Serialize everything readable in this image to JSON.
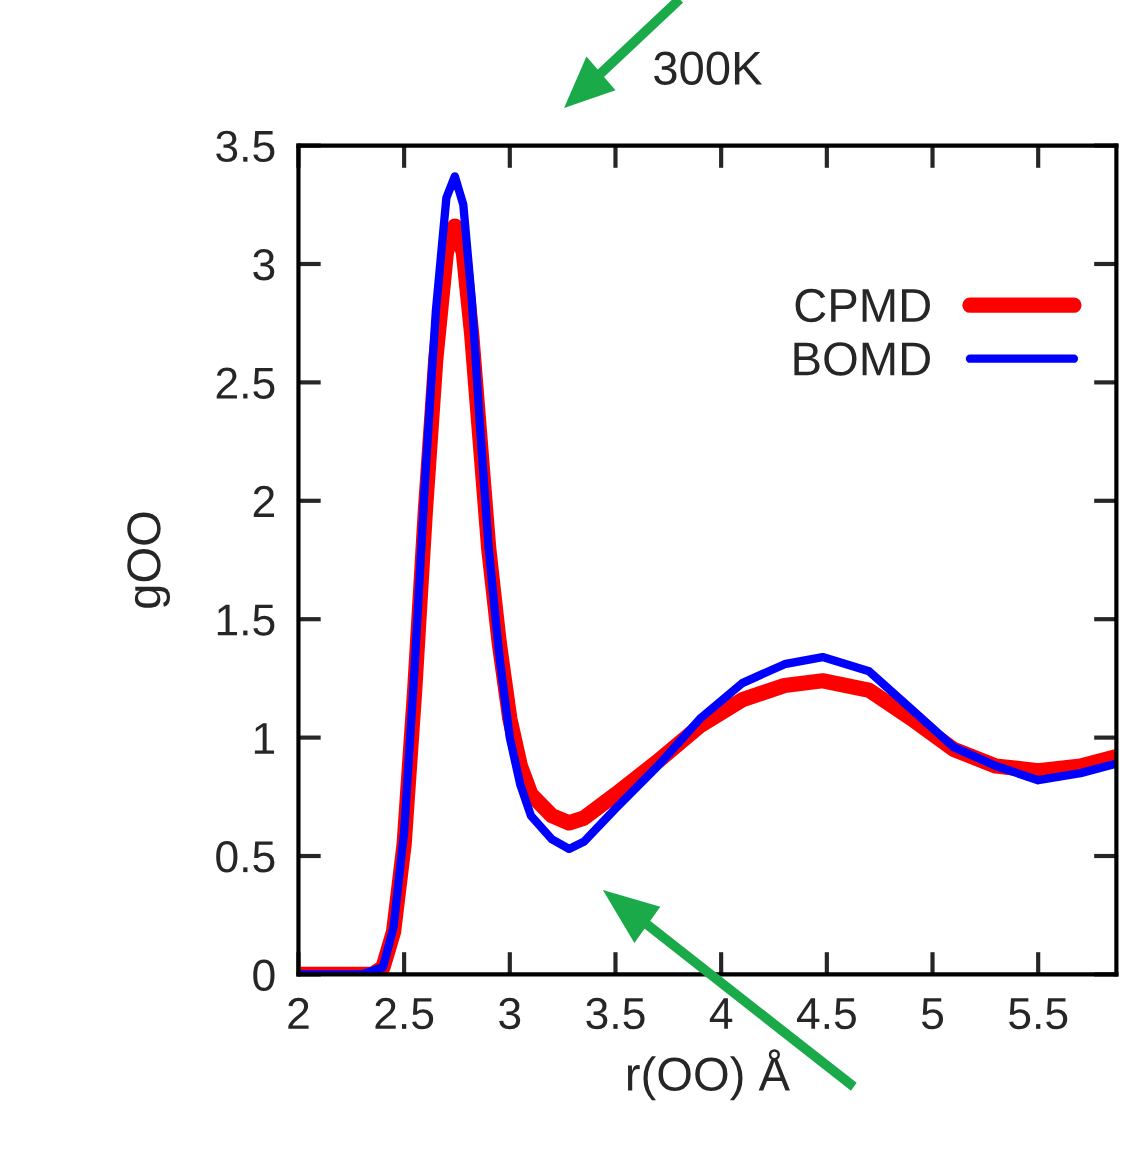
{
  "chart_data": {
    "type": "line",
    "title": "300K",
    "xlabel": "r(OO) Å",
    "ylabel": "gOO",
    "xlim": [
      2,
      5.87
    ],
    "xticks": [
      2,
      2.5,
      3,
      3.5,
      4,
      4.5,
      5,
      5.5
    ],
    "ylim": [
      0,
      3.5
    ],
    "yticks": [
      0,
      0.5,
      1,
      1.5,
      2,
      2.5,
      3,
      3.5
    ],
    "grid": false,
    "legend": "top right",
    "marker": "none",
    "line_style": "solid",
    "series": [
      {
        "name": "CPMD",
        "color": "#ff0000",
        "x": [
          2.0,
          2.35,
          2.4,
          2.45,
          2.5,
          2.55,
          2.6,
          2.65,
          2.7,
          2.74,
          2.78,
          2.82,
          2.86,
          2.9,
          2.95,
          3.0,
          3.05,
          3.1,
          3.2,
          3.28,
          3.35,
          3.5,
          3.7,
          3.9,
          4.1,
          4.3,
          4.48,
          4.7,
          4.9,
          5.1,
          5.3,
          5.5,
          5.7,
          5.87
        ],
        "values": [
          0,
          0,
          0.03,
          0.18,
          0.55,
          1.2,
          1.95,
          2.6,
          3.05,
          3.16,
          3.05,
          2.7,
          2.25,
          1.8,
          1.4,
          1.08,
          0.88,
          0.76,
          0.67,
          0.64,
          0.66,
          0.76,
          0.9,
          1.05,
          1.16,
          1.22,
          1.24,
          1.2,
          1.08,
          0.95,
          0.88,
          0.86,
          0.88,
          0.92
        ]
      },
      {
        "name": "BOMD",
        "color": "#0000ff",
        "x": [
          2.0,
          2.3,
          2.4,
          2.45,
          2.5,
          2.55,
          2.6,
          2.65,
          2.7,
          2.74,
          2.78,
          2.82,
          2.86,
          2.9,
          2.95,
          3.0,
          3.05,
          3.1,
          3.2,
          3.28,
          3.35,
          3.5,
          3.7,
          3.9,
          4.1,
          4.3,
          4.48,
          4.7,
          4.9,
          5.1,
          5.3,
          5.5,
          5.7,
          5.87
        ],
        "values": [
          0,
          0,
          0.03,
          0.2,
          0.6,
          1.3,
          2.1,
          2.8,
          3.28,
          3.37,
          3.25,
          2.85,
          2.3,
          1.8,
          1.35,
          1.0,
          0.8,
          0.67,
          0.57,
          0.53,
          0.56,
          0.7,
          0.88,
          1.08,
          1.23,
          1.31,
          1.34,
          1.28,
          1.12,
          0.96,
          0.88,
          0.82,
          0.85,
          0.89
        ]
      }
    ]
  }
}
